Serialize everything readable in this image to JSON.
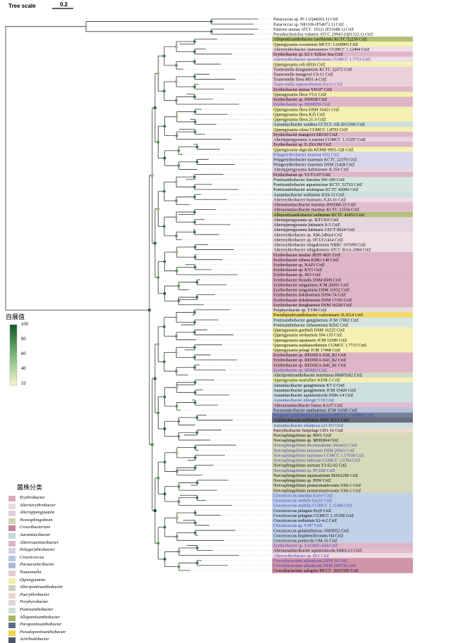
{
  "tree_scale": {
    "label": "Tree scale",
    "value": "0.2"
  },
  "bootstrap": {
    "title": "自展值",
    "ticks": [
      "100",
      "80",
      "60",
      "40",
      "22"
    ]
  },
  "legend": {
    "title": "菌株分类",
    "items": [
      {
        "name": "Erythrobacter",
        "color": "#d9a9bd"
      },
      {
        "name": "Alteriterythrobacter",
        "color": "#ead8e0"
      },
      {
        "name": "Alteriqipengyuania",
        "color": "#e1cfdb"
      },
      {
        "name": "Novosphingobium",
        "color": "#cfd4ad"
      },
      {
        "name": "Croceibacterium",
        "color": "#c9839b"
      },
      {
        "name": "Aurantiacibacter",
        "color": "#c4d9d9"
      },
      {
        "name": "Altererauntiacibacter",
        "color": "#ddb1c8"
      },
      {
        "name": "Pelagerythrobacter",
        "color": "#d0cfe6"
      },
      {
        "name": "Croceicoccus",
        "color": "#b6c9e4"
      },
      {
        "name": "Parauranticibacter",
        "color": "#a9b9d6"
      },
      {
        "name": "Tsuneonella",
        "color": "#e7c9d3"
      },
      {
        "name": "Qipengyuania",
        "color": "#f2efa6"
      },
      {
        "name": "Alteripontixanthobacter",
        "color": "#c7d3c2"
      },
      {
        "name": "Paerythrobacter",
        "color": "#e8d6c9"
      },
      {
        "name": "Porphyrobacter",
        "color": "#e2d6d9"
      },
      {
        "name": "Pontixanthobacter",
        "color": "#cfe0dc"
      },
      {
        "name": "Allopontixanthobacter",
        "color": "#a8b565"
      },
      {
        "name": "Parapontixanthobacter",
        "color": "#5e6c8a"
      },
      {
        "name": "Pseudopontixanthobacter",
        "color": "#f1d44a"
      },
      {
        "name": "Actirhodobacter",
        "color": "#4f5568"
      }
    ]
  },
  "leaves": [
    {
      "label": "Paracoccus sp. PC1 (Q44262.1) CrtZ",
      "color": "#000000",
      "bg": ""
    },
    {
      "label": "Paracoccus sp. N81106 (P54973.1) CrtZ",
      "color": "#000000",
      "bg": ""
    },
    {
      "label": "Pantoea ananas ATCC 19321 (P21688.1) CrtZ",
      "color": "#000000",
      "bg": ""
    },
    {
      "label": "Pseudescherichia vulneris ATCC 29943 (Q01332.1) CrtZ",
      "color": "#000000",
      "bg": ""
    },
    {
      "label": "Allopontixanthobacter confluentis KCTC 52259  CrtZ",
      "color": "#000000",
      "bg": "#a8b565"
    },
    {
      "label": "Qipengyuania oceanensis MCCC 1A09965   CrtZ",
      "color": "#000000",
      "bg": "#f2efa6"
    },
    {
      "label": "Altererythrobacter xiamenensis CGMCC 1.12494   CrtZ",
      "color": "#000000",
      "bg": "#ead8e0"
    },
    {
      "label": "Erythrobacter sp. E2-1 Yellow Sea   CrtZ",
      "color": "#000000",
      "bg": "#d9a9bd"
    },
    {
      "label": "Altererythrobacter epoxidivorans CGMCC 1.7731   CrtZ",
      "color": "#3a3ab0",
      "bg": "#ead8e0"
    },
    {
      "label": "Qipengyuania soli 6D36   CrtZ",
      "color": "#000000",
      "bg": "#f2efa6"
    },
    {
      "label": "Tsuneonella dongtanensis KCTC 22672   CrtZ",
      "color": "#000000",
      "bg": "#e7c9d3"
    },
    {
      "label": "Tsuneonella mangrovi C9-11   CrtZ",
      "color": "#000000",
      "bg": "#e7c9d3"
    },
    {
      "label": "Tsuneonella flava MS1-4   CrtZ",
      "color": "#000000",
      "bg": "#e7c9d3"
    },
    {
      "label": "Tsuneonella suprasediminis Ery12   CrtZ",
      "color": "#3a3ab0",
      "bg": "#e7c9d3"
    },
    {
      "label": "Erythrobacter aureus YH-07   CrtZ",
      "color": "#000000",
      "bg": "#d9a9bd"
    },
    {
      "label": "Qipengyuania flava VG1   CrtZ",
      "color": "#000000",
      "bg": "#f2efa6"
    },
    {
      "label": "Erythrobacter sp. HI0028   CrtZ",
      "color": "#000000",
      "bg": "#d9a9bd"
    },
    {
      "label": "Erythrobacter sp. HI00D59   CrtZ",
      "color": "#3a3ab0",
      "bg": "#d9a9bd"
    },
    {
      "label": "Qipengyuania flava DSM 16421   CrtZ",
      "color": "#000000",
      "bg": "#f2efa6"
    },
    {
      "label": "Qipengyuania flava KJ5   CrtZ",
      "color": "#000000",
      "bg": "#f2efa6"
    },
    {
      "label": "Qipengyuania flava 21-3   CrtZ",
      "color": "#000000",
      "bg": "#f2efa6"
    },
    {
      "label": "Aurantiacibacter xanthus CCTCC AB 2015396   CrtZ",
      "color": "#000000",
      "bg": "#c4d9d9"
    },
    {
      "label": "Qipengyuania citrea CGMCC 1.8703   CrtZ",
      "color": "#000000",
      "bg": "#f2efa6"
    },
    {
      "label": "Erythrobacter mangrovi EB310   CrtZ",
      "color": "#000000",
      "bg": "#d9a9bd"
    },
    {
      "label": "Alteriqipengyuania  A.marina CGMCC 1.15297   CrtZ",
      "color": "#000000",
      "bg": "#e1cfdb"
    },
    {
      "label": "Erythrobacter sp. E-29A1M   CrtZ",
      "color": "#000000",
      "bg": "#d9a9bd"
    },
    {
      "label": "Qipengyuania algicida KEMB 9005-328   CrtZ",
      "color": "#000000",
      "bg": "#f2efa6"
    },
    {
      "label": "Pelagerythrobacter marinus H32   CrtZ",
      "color": "#3a3ab0",
      "bg": "#d0cfe6"
    },
    {
      "label": "Pelagerythrobacter marensis KCTC 22370   CrtZ",
      "color": "#000000",
      "bg": "#d0cfe6"
    },
    {
      "label": "Pelagerythrobacter marensis DSM 21428   CrtZ",
      "color": "#000000",
      "bg": "#d0cfe6"
    },
    {
      "label": "Alteriqipengyuania halimionae JL354   CrtZ",
      "color": "#000000",
      "bg": "#e1cfdb"
    },
    {
      "label": "Erythrobacter sp. YJ-T3-07   CrtZ",
      "color": "#000000",
      "bg": "#d9a9bd"
    },
    {
      "label": "Pontixanthobacter luteolus SW-109   CrtZ",
      "color": "#000000",
      "bg": "#cfe0dc"
    },
    {
      "label": "Pontixanthobacter aquaemixtae KCTC 52763   CrtZ",
      "color": "#000000",
      "bg": "#cfe0dc"
    },
    {
      "label": "Pontixanthobacter aestiaquae KCTC 42006   CrtZ",
      "color": "#000000",
      "bg": "#cfe0dc"
    },
    {
      "label": "Aurantiacibacter sediminis JGD-13   CrtZ",
      "color": "#000000",
      "bg": "#c4d9d9"
    },
    {
      "label": "Altererythrobacter buimaris JGD-16   CrtZ",
      "color": "#000000",
      "bg": "#ead8e0"
    },
    {
      "label": "Alteraurantiacibacter marinus HWDM-33   CrtZ",
      "color": "#000000",
      "bg": "#ddb1c8"
    },
    {
      "label": "Alteraurantiacibacter marinus KCTC 23554   CrtZ",
      "color": "#000000",
      "bg": "#ddb1c8"
    },
    {
      "label": "Allopontixanthobacter sediminis KCTC 42453   CrtZ",
      "color": "#000000",
      "bg": "#a8b565"
    },
    {
      "label": "Alteriqipengyuania sp. JLT1363   CrtZ",
      "color": "#000000",
      "bg": "#e1cfdb"
    },
    {
      "label": "Alteriqipengyuania lutimaris S-5   CrtZ",
      "color": "#000000",
      "bg": "#e1cfdb"
    },
    {
      "label": "Alteriqipengyuania lutimaris CECT 8624   CrtZ",
      "color": "#000000",
      "bg": "#e1cfdb"
    },
    {
      "label": "Altererythrobacter sp. XM-24bin4   CrtZ",
      "color": "#000000",
      "bg": "#ead8e0"
    },
    {
      "label": "Altererythrobacter sp. HCUG1414   CrtZ",
      "color": "#000000",
      "bg": "#ead8e0"
    },
    {
      "label": "Altererythrobacter ishigakiensis NBRC 107699   CrtZ",
      "color": "#000000",
      "bg": "#ead8e0"
    },
    {
      "label": "Altererythrobacter ishigakiensis ATCC BAA-2084   CrtZ",
      "color": "#000000",
      "bg": "#ead8e0"
    },
    {
      "label": "Erythrobacter insulae JBTF-M21   CrtZ",
      "color": "#000000",
      "bg": "#d9a9bd"
    },
    {
      "label": "Erythrobacter rubeus KMU-140   CrtZ",
      "color": "#000000",
      "bg": "#d9a9bd"
    },
    {
      "label": "Erythrobacter sp. NAP1   CrtZ",
      "color": "#000000",
      "bg": "#d9a9bd"
    },
    {
      "label": "Erythrobacter sp. KY5   CrtZ",
      "color": "#000000",
      "bg": "#d9a9bd"
    },
    {
      "label": "Erythrobacter sp. JK5   CrtZ",
      "color": "#000000",
      "bg": "#d9a9bd"
    },
    {
      "label": "Erythrobacter litoralis DSM 8509   CrtZ",
      "color": "#000000",
      "bg": "#d9a9bd"
    },
    {
      "label": "Erythrobacter sanguineus JCM 20691   CrtZ",
      "color": "#000000",
      "bg": "#d9a9bd"
    },
    {
      "label": "Erythrobacter sanguineus DSM 11032   CrtZ",
      "color": "#000000",
      "bg": "#d9a9bd"
    },
    {
      "label": "Erythrobacter dokdonensis DSW-74   CrtZ",
      "color": "#000000",
      "bg": "#d9a9bd"
    },
    {
      "label": "Erythrobacter dokdonensis DSM 17193   CrtZ",
      "color": "#000000",
      "bg": "#d9a9bd"
    },
    {
      "label": "Erythrobacter donghaensis DSM 16220   CrtZ",
      "color": "#000000",
      "bg": "#d9a9bd"
    },
    {
      "label": "Porphyrobacter sp. YT40   CrtZ",
      "color": "#000000",
      "bg": "#e2d6d9"
    },
    {
      "label": "Pseudopontixanthobacter vadosimaris JL3514   CrtZ",
      "color": "#000000",
      "bg": "#f1d44a"
    },
    {
      "label": "Pontixanthobacter gangjinensis JCM 17802   CrtZ",
      "color": "#000000",
      "bg": "#cfe0dc"
    },
    {
      "label": "Pontixanthobacter rizhaonensis RZ02   CrtZ",
      "color": "#000000",
      "bg": "#cfe0dc"
    },
    {
      "label": "Qipengyuania gaetbuli DSM 16225   CrtZ",
      "color": "#000000",
      "bg": "#f2efa6"
    },
    {
      "label": "Qipengyuania seohaensis SW-135   CrtZ",
      "color": "#000000",
      "bg": "#f2efa6"
    },
    {
      "label": "Qipengyuania aquimaris JCM 12189   CrtZ",
      "color": "#000000",
      "bg": "#f2efa6"
    },
    {
      "label": "Qipengyuania nanhaisediminis CGMCC 1.7715   CrtZ",
      "color": "#000000",
      "bg": "#f2efa6"
    },
    {
      "label": "Qipengyuania pelagi JCM 17468   CrtZ",
      "color": "#000000",
      "bg": "#f2efa6"
    },
    {
      "label": "Erythrobacter sp. REDSEA-S28_B2   CrtZ",
      "color": "#000000",
      "bg": "#d9a9bd"
    },
    {
      "label": "Erythrobacter sp. REDSEA-S43_B2   CrtZ",
      "color": "#000000",
      "bg": "#d9a9bd"
    },
    {
      "label": "Erythrobacter sp. REDSEA-S40_B1   CrtZ",
      "color": "#000000",
      "bg": "#d9a9bd"
    },
    {
      "label": "Erythrobacter sp. HI0063   CrtZ",
      "color": "#3a3ab0",
      "bg": "#d9a9bd"
    },
    {
      "label": "Alteripontixanthobacter maritimus HMF9302   CrtZ",
      "color": "#000000",
      "bg": "#c7d3c2"
    },
    {
      "label": "Qipengyuania marisflavi KEM-5   CrtZ",
      "color": "#000000",
      "bg": "#f2efa6"
    },
    {
      "label": "Aurantiacibacter gangjinensis K7-2   CrtZ",
      "color": "#000000",
      "bg": "#c4d9d9"
    },
    {
      "label": "Aurantiacibacter gangjinensis JCM 15420   CrtZ",
      "color": "#000000",
      "bg": "#c4d9d9"
    },
    {
      "label": "Aurantiacibacter aquimixticola JSSK-14   CrtZ",
      "color": "#000000",
      "bg": "#c4d9d9"
    },
    {
      "label": "Aurantiacibacter zhengii V18   CrtZ",
      "color": "#3a3ab0",
      "bg": "#c4d9d9"
    },
    {
      "label": "Alteraurantiacibacter luteus KA37   CrtZ",
      "color": "#000000",
      "bg": "#ddb1c8"
    },
    {
      "label": "Parauranticibacter nanhaiensis JCM 16345   CrtZ",
      "color": "#000000",
      "bg": "#a9b9d6"
    },
    {
      "label": "Parapontixanthobacter aurantiacus MCCC 1A09962   CrtZ",
      "color": "#3a3ab0",
      "bg": "#5e6c8a"
    },
    {
      "label": "Actirhodobacter atriluteus HHU K3-1   CrtZ",
      "color": "#000000",
      "bg": "#4f5568"
    },
    {
      "label": "Aurantiacibacter atlanticus s21-N3   CrtZ",
      "color": "#3a3ab0",
      "bg": "#c4d9d9"
    },
    {
      "label": "Paerythrobacter lutipelagi GH1-16   CrtZ",
      "color": "#000000",
      "bg": "#e8d6c9"
    },
    {
      "label": "Novosphingobium sp. BW1   CrtZ",
      "color": "#000000",
      "bg": "#cfd4ad"
    },
    {
      "label": "Novosphingobium sp. MHSS04   CrtZ",
      "color": "#000000",
      "bg": "#cfd4ad"
    },
    {
      "label": "Novosphingobium decolorationis 502str22   CrtZ",
      "color": "#3a3ab0",
      "bg": "#cfd4ad"
    },
    {
      "label": "Novosphingobium marinum DSM 29043   CrtZ",
      "color": "#3a3ab0",
      "bg": "#cfd4ad"
    },
    {
      "label": "Novosphingobium marinum CGMCC 1.17018   CrtZ",
      "color": "#3a3ab0",
      "bg": "#cfd4ad"
    },
    {
      "label": "Novosphingobium indicum CGMCC 1.6784   CrtZ",
      "color": "#3a3ab0",
      "bg": "#cfd4ad"
    },
    {
      "label": "Novosphingobium aureum YJ-S2-02   CrtZ",
      "color": "#000000",
      "bg": "#cfd4ad"
    },
    {
      "label": "Novosphingobium sp. PC22D   CrtZ",
      "color": "#3a3ab0",
      "bg": "#cfd4ad"
    },
    {
      "label": "Novosphingobium aquimarinum M24A2M   CrtZ",
      "color": "#000000",
      "bg": "#cfd4ad"
    },
    {
      "label": "Novosphingobium sp. P6W   CrtZ",
      "color": "#000000",
      "bg": "#cfd4ad"
    },
    {
      "label": "Novosphingobium pentaromativorans US6-1   CrtZ",
      "color": "#000000",
      "bg": "#cfd4ad"
    },
    {
      "label": "Novosphingobium pentaromativorans US6-1   CrtZ",
      "color": "#000000",
      "bg": "#cfd4ad"
    },
    {
      "label": "Croceicoccus marinus E4A9   CrtZ",
      "color": "#3a3ab0",
      "bg": "#b6c9e4"
    },
    {
      "label": "Croceicoccus mobilis Ery22   CrtZ",
      "color": "#3a3ab0",
      "bg": "#b6c9e4"
    },
    {
      "label": "Croceicoccus mobilis CGMCC 1.15360   CrtZ",
      "color": "#3a3ab0",
      "bg": "#b6c9e4"
    },
    {
      "label": "Croceicoccus pelagius Ery9   CrtZ",
      "color": "#000000",
      "bg": "#b6c9e4"
    },
    {
      "label": "Croceicoccus pelagius CGMCC 1.15358   CrtZ",
      "color": "#000000",
      "bg": "#b6c9e4"
    },
    {
      "label": "Croceicoccus sediminis S2-4-2   CrtZ",
      "color": "#000000",
      "bg": "#b6c9e4"
    },
    {
      "label": "Croceicoccus sp. YJ47   CrtZ",
      "color": "#3a3ab0",
      "bg": "#b6c9e4"
    },
    {
      "label": "Croceicoccus gelatinilyticus 3NDH52   CrtZ",
      "color": "#000000",
      "bg": "#b6c9e4"
    },
    {
      "label": "Croceicoccus bisphenolivorans H4   CrtZ",
      "color": "#000000",
      "bg": "#b6c9e4"
    },
    {
      "label": "Croceicoccus ponticola GM-16   CrtZ",
      "color": "#000000",
      "bg": "#b6c9e4"
    },
    {
      "label": "Erythrobacter sp. SAORIC-644   CrtZ",
      "color": "#3a3ab0",
      "bg": "#d9a9bd"
    },
    {
      "label": "Alteraurantiacibacter aquimixticola SSKS-13   CrtZ",
      "color": "#000000",
      "bg": "#ddb1c8"
    },
    {
      "label": "Altererythrobacter sp. B11   CrtZ",
      "color": "#3a3ab0",
      "bg": "#ead8e0"
    },
    {
      "label": "Croceibacterium atlanticum 26DY36   CrtZ",
      "color": "#3a3ab0",
      "bg": "#c9839b"
    },
    {
      "label": "Croceibacterium atlanticum DSM 100738   CrtZ",
      "color": "#3a3ab0",
      "bg": "#c9839b"
    },
    {
      "label": "Croceibacterium salegens MCCC 1K01500   CrtZ",
      "color": "#000000",
      "bg": "#c9839b"
    }
  ]
}
